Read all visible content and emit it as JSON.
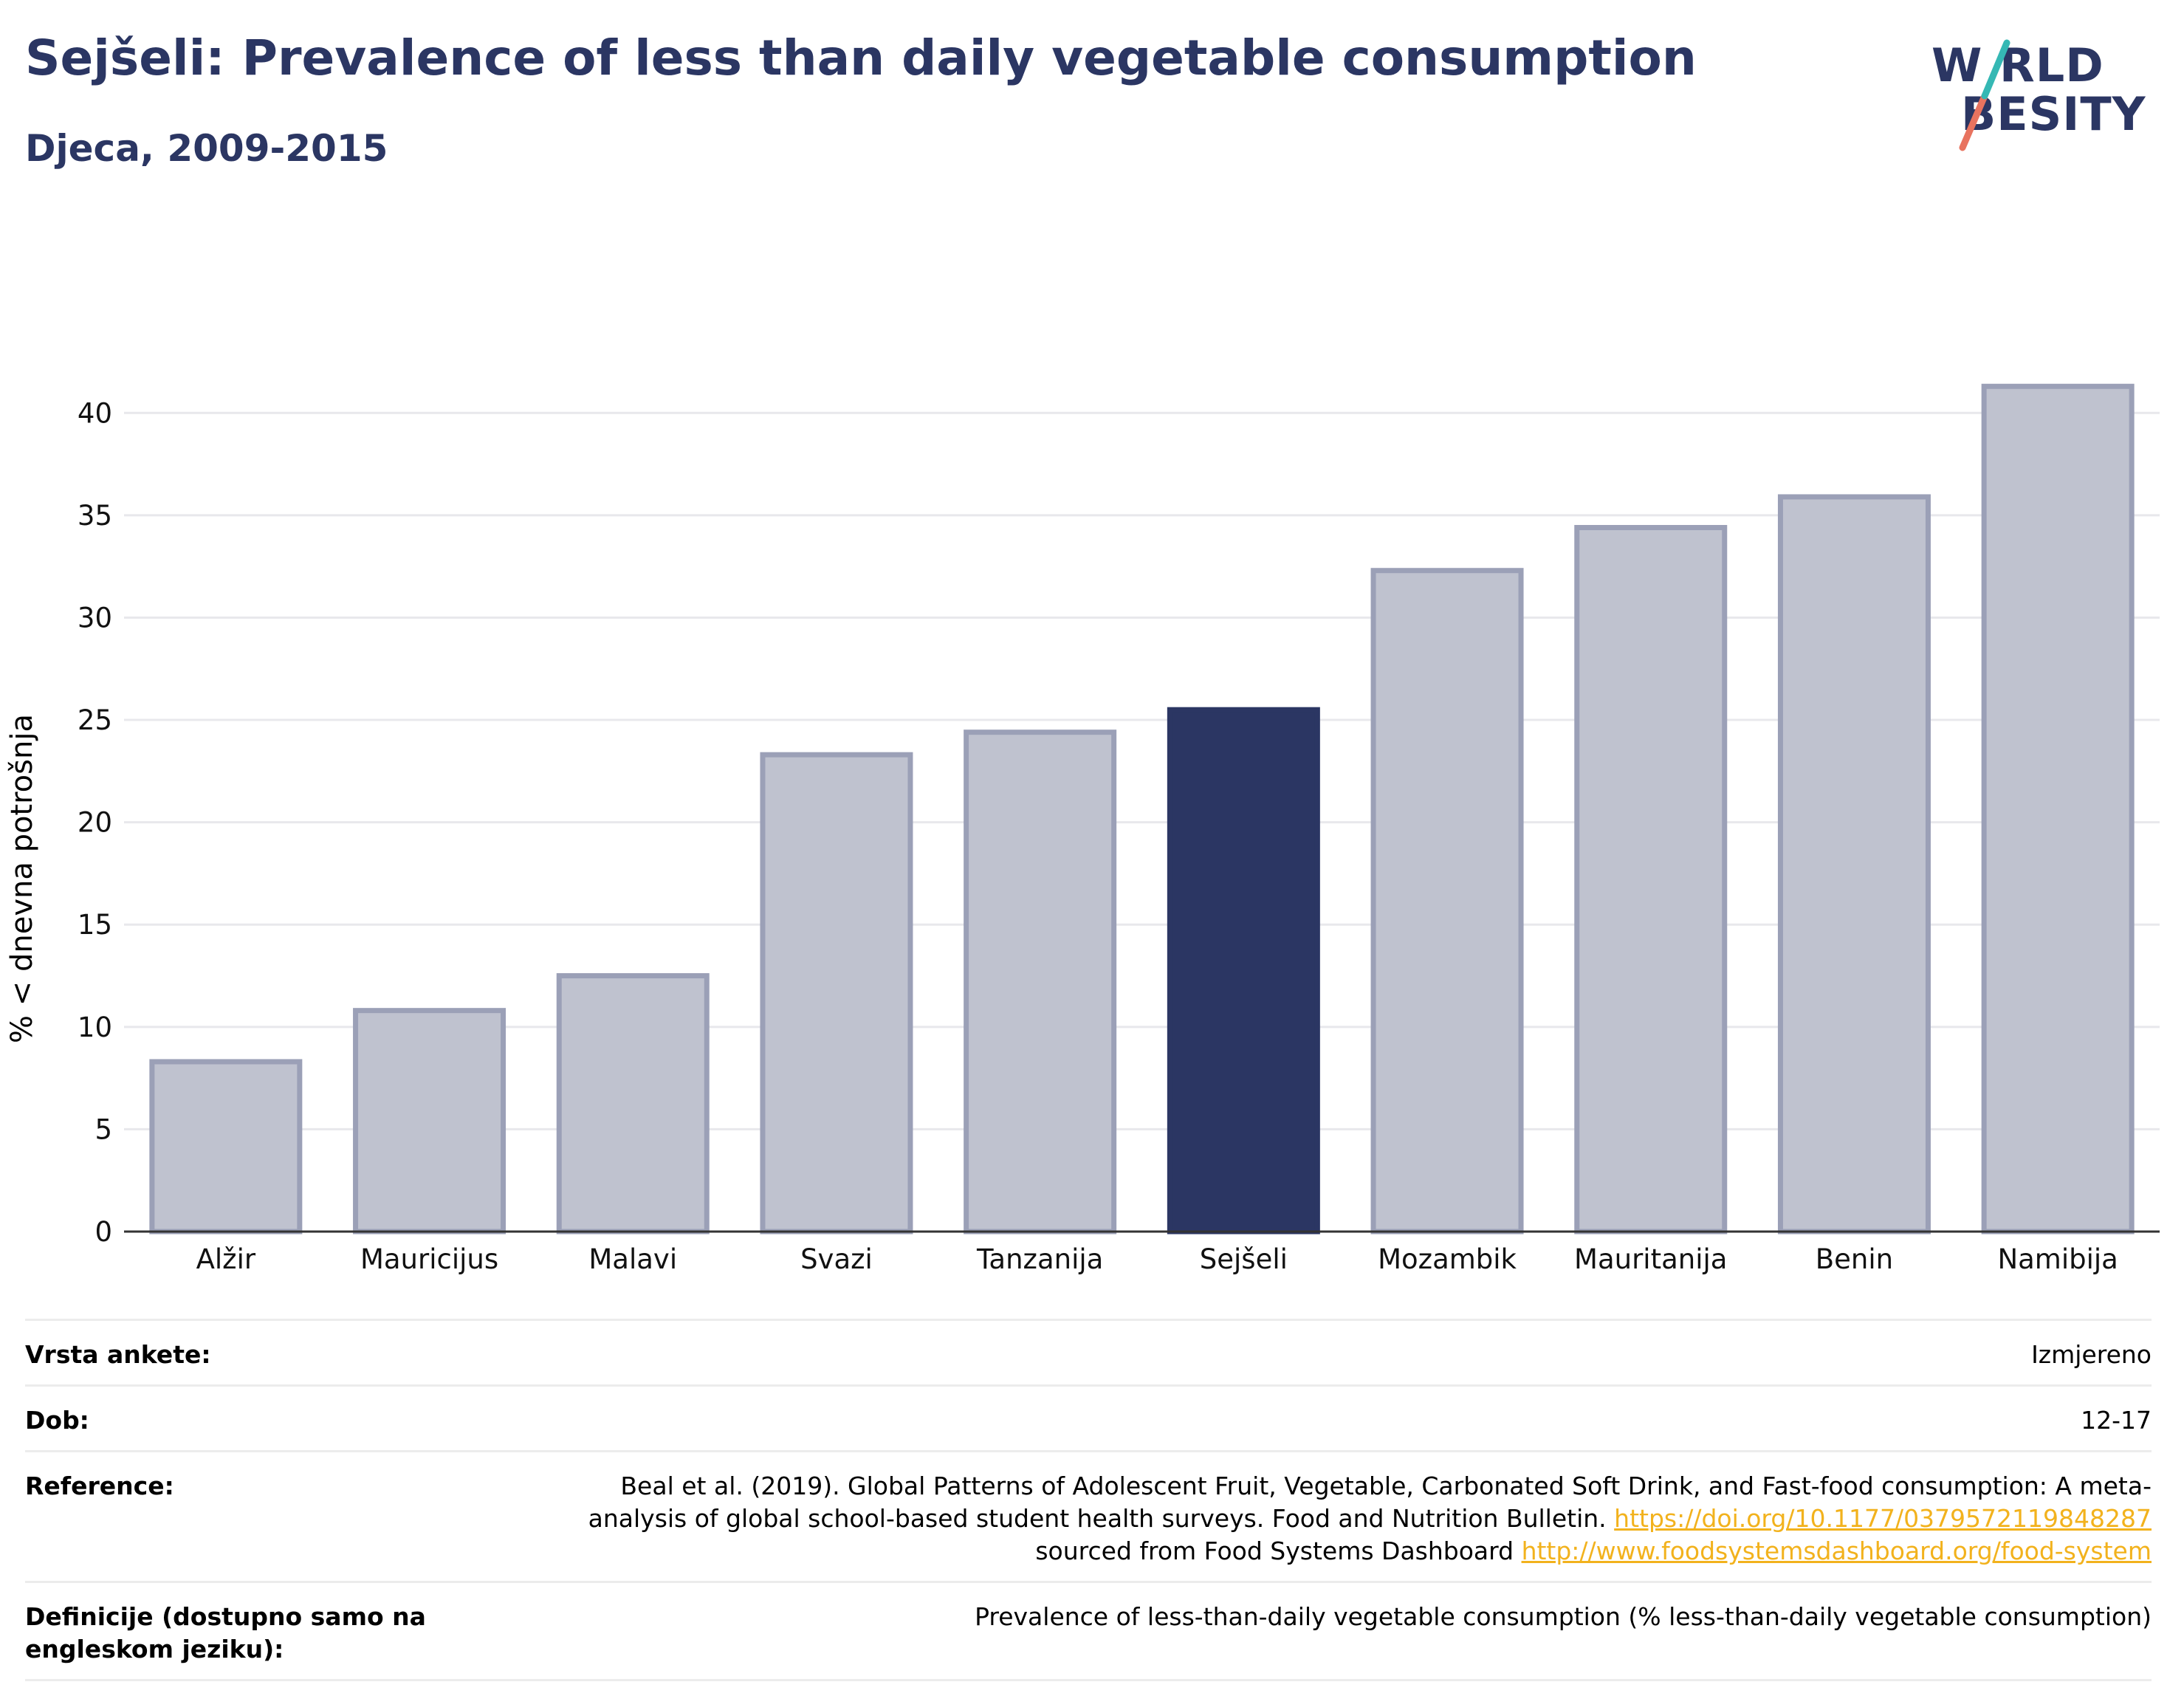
{
  "title": "Sejšeli: Prevalence of less than daily vegetable consumption",
  "subtitle": "Djeca, 2009-2015",
  "logo": {
    "line1": "W RLD",
    "line2": "BESITY",
    "line1_full": "WORLD",
    "line2_full": "OBESITY"
  },
  "colors": {
    "highlight": "#2b3663",
    "bar": "#bfc2cf",
    "bar_edge": "#9ba0b7",
    "title": "#2b3663",
    "link": "#f2b21d",
    "logo_slash_top": "#35b8b4",
    "logo_slash_bottom": "#e8735f"
  },
  "chart_data": {
    "type": "bar",
    "categories": [
      "Alžir",
      "Mauricijus",
      "Malavi",
      "Svazi",
      "Tanzanija",
      "Sejšeli",
      "Mozambik",
      "Mauritanija",
      "Benin",
      "Namibija"
    ],
    "values": [
      8.3,
      10.8,
      12.5,
      23.3,
      24.4,
      25.5,
      32.3,
      34.4,
      35.9,
      41.3
    ],
    "highlight": "Sejšeli",
    "ylabel": "% < dnevna potrošnja",
    "yticks": [
      0,
      5,
      10,
      15,
      20,
      25,
      30,
      35,
      40
    ],
    "ylim": [
      0,
      42.5
    ],
    "grid": true
  },
  "meta": [
    {
      "label": "Vrsta ankete:",
      "value": "Izmjereno"
    },
    {
      "label": "Dob:",
      "value": "12-17"
    },
    {
      "label": "Reference:",
      "value_pre": "Beal et al. (2019). Global Patterns of Adolescent Fruit, Vegetable, Carbonated Soft Drink, and Fast-food consumption: A meta-analysis of global school-based student health surveys. Food and Nutrition Bulletin. ",
      "link1": "https://doi.org/10.1177/0379572119848287",
      "value_mid": " sourced from Food Systems Dashboard ",
      "link2": "http://www.foodsystemsdashboard.org/food-system"
    },
    {
      "label": "Definicije (dostupno samo na engleskom jeziku):",
      "value": "Prevalence of less-than-daily vegetable consumption (% less-than-daily vegetable consumption)"
    }
  ]
}
